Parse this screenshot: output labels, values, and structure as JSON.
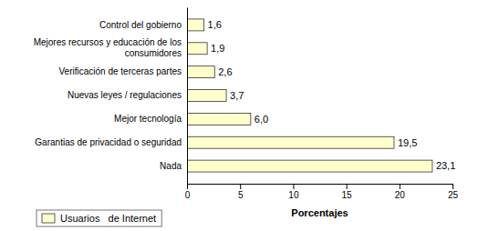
{
  "chart_data": {
    "type": "bar",
    "orientation": "horizontal",
    "categories": [
      "Nada",
      "Garantias de privacidad o seguridad",
      "Mejor tecnología",
      "Nuevas leyes / regulaciones",
      "Verificación de terceras partes",
      "Mejores recursos y educación de los\nconsumidores",
      "Control del gobierno"
    ],
    "series": [
      {
        "name": "Usuarios   de Internet",
        "color": "#FFFFCC",
        "values": [
          23.1,
          19.5,
          6.0,
          3.7,
          2.6,
          1.9,
          1.6
        ],
        "value_labels": [
          "23,1",
          "19,5",
          "6,0",
          "3,7",
          "2,6",
          "1,9",
          "1,6"
        ]
      }
    ],
    "xlabel": "Porcentajes",
    "xlim": [
      0,
      25
    ],
    "xticks": [
      0,
      5,
      10,
      15,
      20,
      25
    ],
    "data_labels": true,
    "legend": "bottom",
    "grid": false
  }
}
